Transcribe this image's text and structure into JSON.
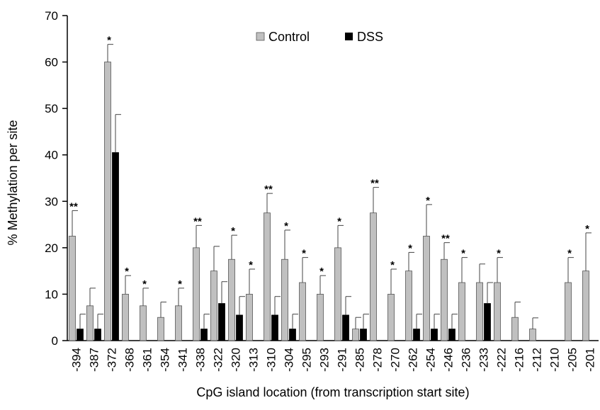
{
  "chart_data": {
    "type": "bar",
    "xlabel": "CpG island location (from transcription start site)",
    "ylabel": "% Methylation per site",
    "ylim": [
      0,
      70
    ],
    "yticks": [
      0,
      10,
      20,
      30,
      40,
      50,
      60,
      70
    ],
    "grid": false,
    "legend_position": "top-center",
    "categories": [
      "-394",
      "-387",
      "-372",
      "-368",
      "-361",
      "-354",
      "-341",
      "-338",
      "-322",
      "-320",
      "-313",
      "-310",
      "-304",
      "-295",
      "-293",
      "-291",
      "-285",
      "-278",
      "-270",
      "-262",
      "-254",
      "-246",
      "-236",
      "-233",
      "-222",
      "-216",
      "-212",
      "-210",
      "-205",
      "-201"
    ],
    "series": [
      {
        "name": "Control",
        "color": "#c0c0c0",
        "values": [
          22.5,
          7.5,
          60,
          10,
          7.5,
          5,
          7.5,
          20,
          15,
          17.5,
          10,
          27.5,
          17.5,
          12.5,
          10,
          20,
          2.5,
          27.5,
          10,
          15,
          22.5,
          17.5,
          12.5,
          12.5,
          12.5,
          5,
          2.5,
          0,
          12.5,
          15
        ],
        "errors": [
          5.5,
          3.8,
          3.8,
          4,
          3.8,
          3.3,
          3.8,
          4.8,
          5.3,
          5.2,
          5.4,
          4.2,
          6.3,
          5.4,
          4,
          4.8,
          2.5,
          5.5,
          5.4,
          4,
          6.8,
          3.6,
          5.4,
          4,
          5.4,
          3.3,
          2.4,
          0,
          5.4,
          8.2
        ]
      },
      {
        "name": "DSS",
        "color": "#000000",
        "values": [
          2.5,
          2.5,
          40.5,
          0,
          0,
          0,
          0,
          2.5,
          8,
          5.5,
          0,
          5.5,
          2.5,
          0,
          0,
          5.5,
          2.5,
          0,
          0,
          2.5,
          2.5,
          2.5,
          0,
          8,
          0,
          0,
          0,
          0,
          0,
          0
        ],
        "errors": [
          3.2,
          3.2,
          8.2,
          0,
          0,
          0,
          0,
          3.2,
          4.7,
          4,
          0,
          4,
          3.2,
          0,
          0,
          4,
          3.2,
          0,
          0,
          3.2,
          3.2,
          3.2,
          0,
          4.5,
          0,
          0,
          0,
          0,
          0,
          0
        ]
      }
    ],
    "significance": [
      "**",
      "",
      "*",
      "*",
      "*",
      "",
      "*",
      "**",
      "",
      "*",
      "*",
      "**",
      "*",
      "*",
      "*",
      "*",
      "",
      "**",
      "*",
      "*",
      "*",
      "**",
      "*",
      "",
      "*",
      "",
      "",
      "",
      "*",
      "*"
    ]
  }
}
